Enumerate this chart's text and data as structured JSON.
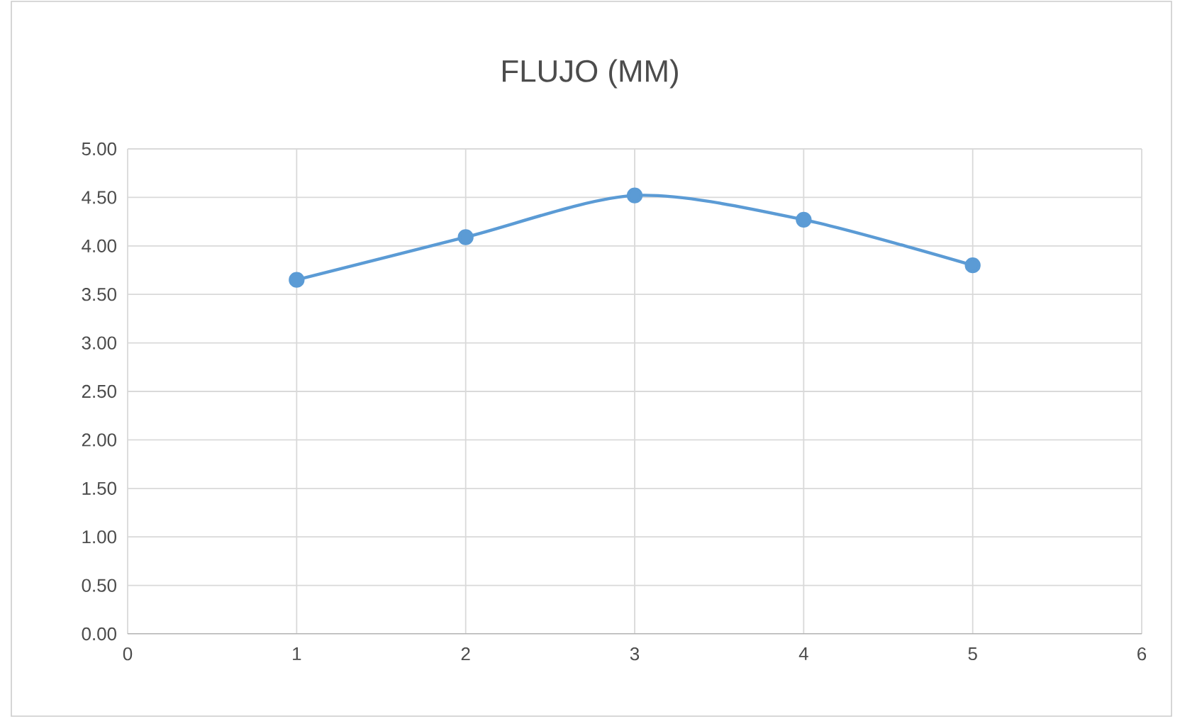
{
  "chart_data": {
    "type": "line",
    "title": "FLUJO (MM)",
    "x": [
      1,
      2,
      3,
      4,
      5
    ],
    "series": [
      {
        "color": "#5b9bd5",
        "values": [
          3.65,
          4.09,
          4.52,
          4.27,
          3.8
        ]
      }
    ],
    "xlim": [
      0,
      6
    ],
    "xticks": [
      0,
      1,
      2,
      3,
      4,
      5,
      6
    ],
    "ylim": [
      0,
      5
    ],
    "yticks": [
      {
        "value": 0,
        "label": "0.00"
      },
      {
        "value": 0.5,
        "label": "0.50"
      },
      {
        "value": 1,
        "label": "1.00"
      },
      {
        "value": 1.5,
        "label": "1.50"
      },
      {
        "value": 2,
        "label": "2.00"
      },
      {
        "value": 2.5,
        "label": "2.50"
      },
      {
        "value": 3,
        "label": "3.00"
      },
      {
        "value": 3.5,
        "label": "3.50"
      },
      {
        "value": 4,
        "label": "4.00"
      },
      {
        "value": 4.5,
        "label": "4.50"
      },
      {
        "value": 5,
        "label": "5.00"
      }
    ],
    "grid": true,
    "marker": "circle",
    "line_style": "solid"
  }
}
